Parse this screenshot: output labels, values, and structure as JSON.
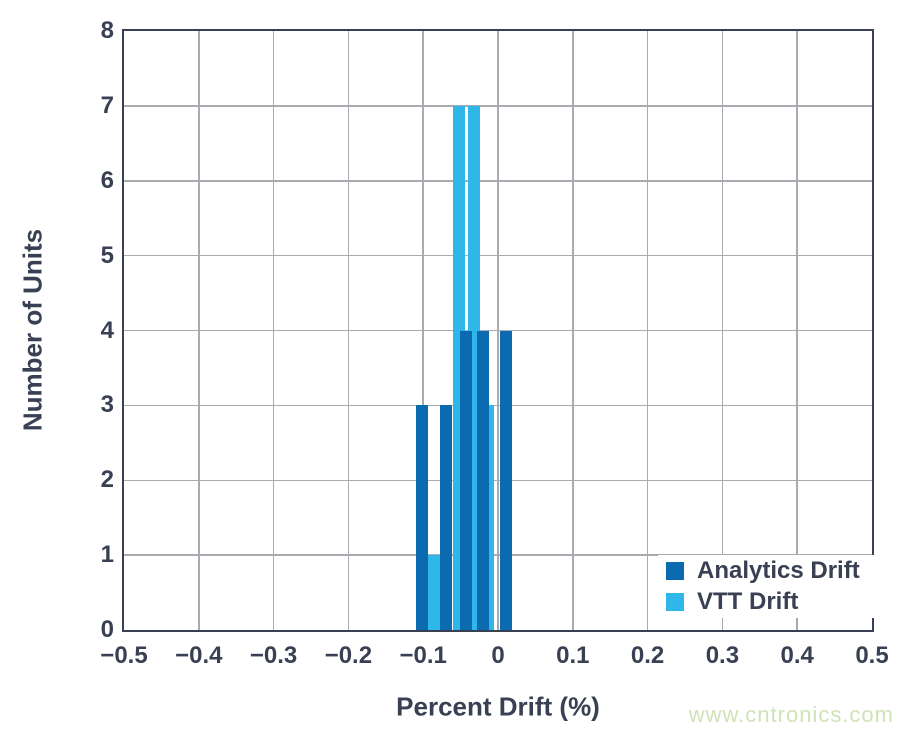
{
  "colors": {
    "axis": "#3A4053",
    "grid": "#A9ABB0",
    "background": "#FFFFFF",
    "analytics_blue": "#0C6BB0",
    "vtt_cyan": "#2FB7E9",
    "watermark_green": "#CFE3B6"
  },
  "watermark": {
    "text": "www.cntronics.com"
  },
  "chart_data": {
    "type": "bar",
    "subtype": "overlaid-histogram",
    "title": "",
    "xlabel": "Percent Drift (%)",
    "ylabel": "Number of Units",
    "xlim": [
      -0.5,
      0.5
    ],
    "ylim": [
      0,
      8
    ],
    "grid": true,
    "bar_width_percent": 0.016,
    "xticks": {
      "values": [
        -0.5,
        -0.4,
        -0.3,
        -0.2,
        -0.1,
        0,
        0.1,
        0.2,
        0.3,
        0.4,
        0.5
      ],
      "labels": [
        "−0.5",
        "−0.4",
        "−0.3",
        "−0.2",
        "−0.1",
        "0",
        "0.1",
        "0.2",
        "0.3",
        "0.4",
        "0.5"
      ]
    },
    "yticks": {
      "values": [
        0,
        1,
        2,
        3,
        4,
        5,
        6,
        7,
        8
      ],
      "labels": [
        "0",
        "1",
        "2",
        "3",
        "4",
        "5",
        "6",
        "7",
        "8"
      ]
    },
    "series": [
      {
        "name": "VTT Drift",
        "color": "#2FB7E9",
        "draw_order": "behind",
        "bars": [
          {
            "center": -0.085,
            "count": 1
          },
          {
            "center": -0.052,
            "count": 7
          },
          {
            "center": -0.032,
            "count": 7
          },
          {
            "center": -0.013,
            "count": 3
          }
        ]
      },
      {
        "name": "Analytics Drift",
        "color": "#0C6BB0",
        "draw_order": "front",
        "bars": [
          {
            "center": -0.102,
            "count": 3
          },
          {
            "center": -0.07,
            "count": 3
          },
          {
            "center": -0.043,
            "count": 4
          },
          {
            "center": -0.02,
            "count": 4
          },
          {
            "center": 0.011,
            "count": 4
          }
        ]
      }
    ],
    "legend": {
      "position": "bottom-right",
      "entries": [
        {
          "label": "Analytics Drift",
          "color": "#0C6BB0"
        },
        {
          "label": "VTT Drift",
          "color": "#2FB7E9"
        }
      ]
    }
  }
}
